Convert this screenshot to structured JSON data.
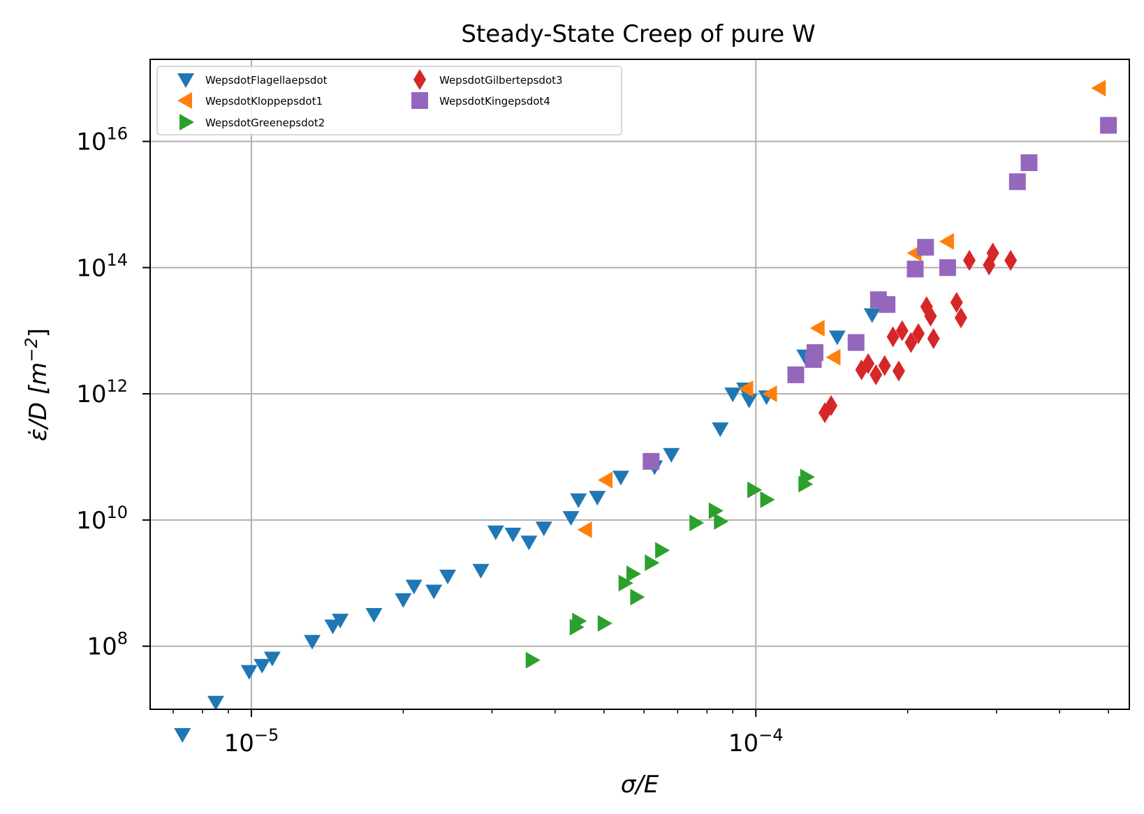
{
  "chart_data": {
    "type": "scatter",
    "title": "Steady-State Creep of pure W",
    "xlabel_main": "σ/E",
    "ylabel_main": "ε̇/D [m",
    "ylabel_exp": "−2",
    "ylabel_close": "]",
    "x_scale": "log",
    "y_scale": "log",
    "xlim": [
      6.3e-06,
      0.00055
    ],
    "ylim": [
      10000000,
      200000000000000000
    ],
    "grid": true,
    "legend_position": "top-left",
    "x_ticks": [
      {
        "value": 1e-05,
        "base": "10",
        "exp": "−5"
      },
      {
        "value": 0.0001,
        "base": "10",
        "exp": "−4"
      }
    ],
    "y_ticks": [
      {
        "value": 100000000.0,
        "base": "10",
        "exp": "8"
      },
      {
        "value": 10000000000.0,
        "base": "10",
        "exp": "10"
      },
      {
        "value": 1000000000000.0,
        "base": "10",
        "exp": "12"
      },
      {
        "value": 100000000000000.0,
        "base": "10",
        "exp": "14"
      },
      {
        "value": 1e+16,
        "base": "10",
        "exp": "16"
      }
    ],
    "series": [
      {
        "name": "WepsdotFlagellaepsdot",
        "color": "#1f77b4",
        "marker": "triangle-down",
        "points": [
          [
            7.3e-06,
            4000000.0
          ],
          [
            8.5e-06,
            13000000.0
          ],
          [
            9.9e-06,
            40000000.0
          ],
          [
            1.05e-05,
            50000000.0
          ],
          [
            1.1e-05,
            65000000.0
          ],
          [
            1.32e-05,
            120000000.0
          ],
          [
            1.45e-05,
            210000000.0
          ],
          [
            1.5e-05,
            260000000.0
          ],
          [
            1.75e-05,
            320000000.0
          ],
          [
            2e-05,
            550000000.0
          ],
          [
            2.1e-05,
            900000000.0
          ],
          [
            2.3e-05,
            750000000.0
          ],
          [
            2.45e-05,
            1300000000.0
          ],
          [
            2.85e-05,
            1600000000.0
          ],
          [
            3.05e-05,
            6500000000.0
          ],
          [
            3.3e-05,
            6000000000.0
          ],
          [
            3.55e-05,
            4500000000.0
          ],
          [
            3.8e-05,
            7500000000.0
          ],
          [
            4.3e-05,
            11000000000.0
          ],
          [
            4.45e-05,
            21000000000.0
          ],
          [
            4.85e-05,
            23000000000.0
          ],
          [
            5.4e-05,
            48000000000.0
          ],
          [
            6.3e-05,
            70000000000.0
          ],
          [
            6.8e-05,
            110000000000.0
          ],
          [
            8.5e-05,
            280000000000.0
          ],
          [
            9e-05,
            1000000000000.0
          ],
          [
            9.5e-05,
            1200000000000.0
          ],
          [
            9.7e-05,
            800000000000.0
          ],
          [
            0.000105,
            900000000000.0
          ],
          [
            0.000125,
            4000000000000.0
          ],
          [
            0.000145,
            8000000000000.0
          ],
          [
            0.00017,
            18000000000000.0
          ]
        ]
      },
      {
        "name": "WepsdotKloppepsdot1",
        "color": "#ff7f0e",
        "marker": "triangle-left",
        "points": [
          [
            4.6e-05,
            7000000000.0
          ],
          [
            5.05e-05,
            43000000000.0
          ],
          [
            9.6e-05,
            1200000000000.0
          ],
          [
            0.000107,
            1000000000000.0
          ],
          [
            0.000133,
            11000000000000.0
          ],
          [
            0.000143,
            3800000000000.0
          ],
          [
            0.000207,
            170000000000000.0
          ],
          [
            0.00024,
            260000000000000.0
          ],
          [
            0.00048,
            7e+16
          ]
        ]
      },
      {
        "name": "WepsdotGreenepsdot2",
        "color": "#2ca02c",
        "marker": "triangle-right",
        "points": [
          [
            3.6e-05,
            60000000.0
          ],
          [
            4.4e-05,
            200000000.0
          ],
          [
            4.45e-05,
            250000000.0
          ],
          [
            5e-05,
            230000000.0
          ],
          [
            5.5e-05,
            1000000000.0
          ],
          [
            5.7e-05,
            1400000000.0
          ],
          [
            5.8e-05,
            600000000.0
          ],
          [
            6.2e-05,
            2100000000.0
          ],
          [
            6.5e-05,
            3300000000.0
          ],
          [
            7.6e-05,
            9000000000.0
          ],
          [
            8.3e-05,
            14000000000.0
          ],
          [
            8.5e-05,
            9500000000.0
          ],
          [
            9.9e-05,
            30000000000.0
          ],
          [
            0.000105,
            21000000000.0
          ],
          [
            0.000125,
            37000000000.0
          ],
          [
            0.000126,
            48000000000.0
          ]
        ]
      },
      {
        "name": "WepsdotGilbertepsdot3",
        "color": "#d62728",
        "marker": "thin-diamond",
        "points": [
          [
            0.000137,
            500000000000.0
          ],
          [
            0.000141,
            650000000000.0
          ],
          [
            0.000162,
            2400000000000.0
          ],
          [
            0.000167,
            3000000000000.0
          ],
          [
            0.000173,
            2000000000000.0
          ],
          [
            0.00018,
            2800000000000.0
          ],
          [
            0.000187,
            8000000000000.0
          ],
          [
            0.000192,
            2300000000000.0
          ],
          [
            0.000195,
            10000000000000.0
          ],
          [
            0.000203,
            6500000000000.0
          ],
          [
            0.00021,
            9000000000000.0
          ],
          [
            0.000218,
            24000000000000.0
          ],
          [
            0.000222,
            17000000000000.0
          ],
          [
            0.000225,
            7500000000000.0
          ],
          [
            0.00025,
            28000000000000.0
          ],
          [
            0.000255,
            16000000000000.0
          ],
          [
            0.000265,
            130000000000000.0
          ],
          [
            0.00029,
            110000000000000.0
          ],
          [
            0.000295,
            170000000000000.0
          ],
          [
            0.00032,
            130000000000000.0
          ]
        ]
      },
      {
        "name": "WepsdotKingepsdot4",
        "color": "#9467bd",
        "marker": "square",
        "points": [
          [
            6.2e-05,
            85000000000.0
          ],
          [
            0.00012,
            2000000000000.0
          ],
          [
            0.00013,
            3500000000000.0
          ],
          [
            0.000131,
            4500000000000.0
          ],
          [
            0.000158,
            6500000000000.0
          ],
          [
            0.000175,
            31000000000000.0
          ],
          [
            0.000182,
            26000000000000.0
          ],
          [
            0.000207,
            95000000000000.0
          ],
          [
            0.000217,
            210000000000000.0
          ],
          [
            0.00024,
            100000000000000.0
          ],
          [
            0.00033,
            2300000000000000.0
          ],
          [
            0.000348,
            4600000000000000.0
          ],
          [
            0.0005,
            1.8e+16
          ]
        ]
      }
    ]
  }
}
